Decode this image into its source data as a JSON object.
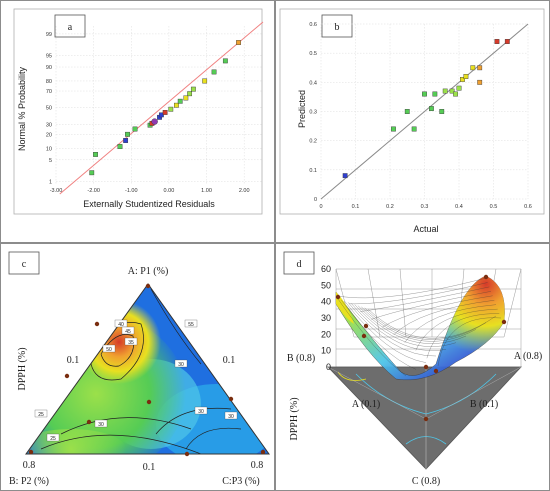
{
  "panels": {
    "a": "a",
    "b": "b",
    "c": "c",
    "d": "d"
  },
  "colors": {
    "fit_line_a": "#f08080",
    "fit_line_b": "#8a8a8a",
    "low": "#2f3fd0",
    "mid": "#55cc55",
    "high": "#d63a2a",
    "plane": "#6d6d6d"
  },
  "chart_data": [
    {
      "panel": "a",
      "type": "scatter",
      "xlabel": "Externally Studentized Residuals",
      "ylabel": "Normal % Probability",
      "x_ticks": [
        "-3.00",
        "-2.00",
        "-1.00",
        "0.00",
        "1.00",
        "2.00"
      ],
      "y_ticks": [
        "1",
        "5",
        "10",
        "20",
        "30",
        "50",
        "70",
        "80",
        "90",
        "95",
        "99"
      ],
      "xlim": [
        -3.0,
        2.5
      ],
      "grid": true,
      "reference_line": true,
      "points": [
        {
          "x": -2.05,
          "y": 2,
          "c": "#55cc55"
        },
        {
          "x": -1.95,
          "y": 7,
          "c": "#55cc55"
        },
        {
          "x": -1.3,
          "y": 11,
          "c": "#55cc55"
        },
        {
          "x": -1.15,
          "y": 15,
          "c": "#2f3fd0"
        },
        {
          "x": -1.1,
          "y": 20,
          "c": "#55cc55"
        },
        {
          "x": -0.9,
          "y": 25,
          "c": "#55cc55"
        },
        {
          "x": -0.5,
          "y": 29,
          "c": "#55cc55"
        },
        {
          "x": -0.45,
          "y": 31,
          "c": "#d63a2a"
        },
        {
          "x": -0.38,
          "y": 33,
          "c": "#8f3ab0"
        },
        {
          "x": -0.25,
          "y": 38,
          "c": "#2f3fd0"
        },
        {
          "x": -0.2,
          "y": 41,
          "c": "#2f3fd0"
        },
        {
          "x": -0.1,
          "y": 44,
          "c": "#d63a2a"
        },
        {
          "x": 0.05,
          "y": 48,
          "c": "#9be04a"
        },
        {
          "x": 0.2,
          "y": 53,
          "c": "#e8e020"
        },
        {
          "x": 0.3,
          "y": 58,
          "c": "#55cc55"
        },
        {
          "x": 0.45,
          "y": 62,
          "c": "#e8e020"
        },
        {
          "x": 0.55,
          "y": 67,
          "c": "#9be04a"
        },
        {
          "x": 0.65,
          "y": 72,
          "c": "#9be04a"
        },
        {
          "x": 0.95,
          "y": 80,
          "c": "#e8e020"
        },
        {
          "x": 1.2,
          "y": 87,
          "c": "#55cc55"
        },
        {
          "x": 1.5,
          "y": 93,
          "c": "#55cc55"
        },
        {
          "x": 1.85,
          "y": 98,
          "c": "#f0a030"
        }
      ]
    },
    {
      "panel": "b",
      "type": "scatter",
      "xlabel": "Actual",
      "ylabel": "Predicted",
      "x_ticks": [
        "0",
        "0.1",
        "0.2",
        "0.3",
        "0.4",
        "0.5",
        "0.6"
      ],
      "y_ticks": [
        "0",
        "0.1",
        "0.2",
        "0.3",
        "0.4",
        "0.5",
        "0.6"
      ],
      "xlim": [
        0,
        0.6
      ],
      "ylim": [
        0,
        0.6
      ],
      "grid": true,
      "reference_line": true,
      "points": [
        {
          "x": 0.07,
          "y": 0.08,
          "c": "#2f3fd0"
        },
        {
          "x": 0.21,
          "y": 0.24,
          "c": "#55cc55"
        },
        {
          "x": 0.25,
          "y": 0.3,
          "c": "#55cc55"
        },
        {
          "x": 0.27,
          "y": 0.24,
          "c": "#55cc55"
        },
        {
          "x": 0.3,
          "y": 0.36,
          "c": "#55cc55"
        },
        {
          "x": 0.32,
          "y": 0.31,
          "c": "#55cc55"
        },
        {
          "x": 0.33,
          "y": 0.36,
          "c": "#55cc55"
        },
        {
          "x": 0.35,
          "y": 0.3,
          "c": "#55cc55"
        },
        {
          "x": 0.36,
          "y": 0.37,
          "c": "#9be04a"
        },
        {
          "x": 0.38,
          "y": 0.37,
          "c": "#9be04a"
        },
        {
          "x": 0.39,
          "y": 0.36,
          "c": "#9be04a"
        },
        {
          "x": 0.4,
          "y": 0.38,
          "c": "#9be04a"
        },
        {
          "x": 0.41,
          "y": 0.41,
          "c": "#e8e020"
        },
        {
          "x": 0.42,
          "y": 0.42,
          "c": "#e8e020"
        },
        {
          "x": 0.44,
          "y": 0.45,
          "c": "#e8e020"
        },
        {
          "x": 0.46,
          "y": 0.45,
          "c": "#f0a030"
        },
        {
          "x": 0.46,
          "y": 0.4,
          "c": "#f0a030"
        },
        {
          "x": 0.51,
          "y": 0.54,
          "c": "#d63a2a"
        },
        {
          "x": 0.54,
          "y": 0.54,
          "c": "#d63a2a"
        }
      ]
    },
    {
      "panel": "c",
      "type": "heatmap",
      "title": "A: P1 (%)",
      "ylabel": "DPPH (%)",
      "corner_left_value": "0.8",
      "corner_left_label": "B: P2 (%)",
      "corner_right_value": "0.8",
      "corner_right_label": "C:P3 (%)",
      "edge_left": "0.1",
      "edge_right": "0.1",
      "edge_bottom": "0.1",
      "contour_labels": [
        "25",
        "25",
        "30",
        "30",
        "30",
        "30",
        "35",
        "40",
        "45",
        "50",
        "55"
      ]
    },
    {
      "panel": "d",
      "type": "surface",
      "zlabel": "DPPH (%)",
      "z_ticks": [
        "0",
        "10",
        "20",
        "30",
        "40",
        "50",
        "60"
      ],
      "zlim": [
        0,
        60
      ],
      "label_b": "B (0.8)",
      "label_a_top": "A (0.8)",
      "label_a_low": "A (0.1)",
      "label_b_low": "B (0.1)",
      "label_c": "C (0.8)"
    }
  ]
}
